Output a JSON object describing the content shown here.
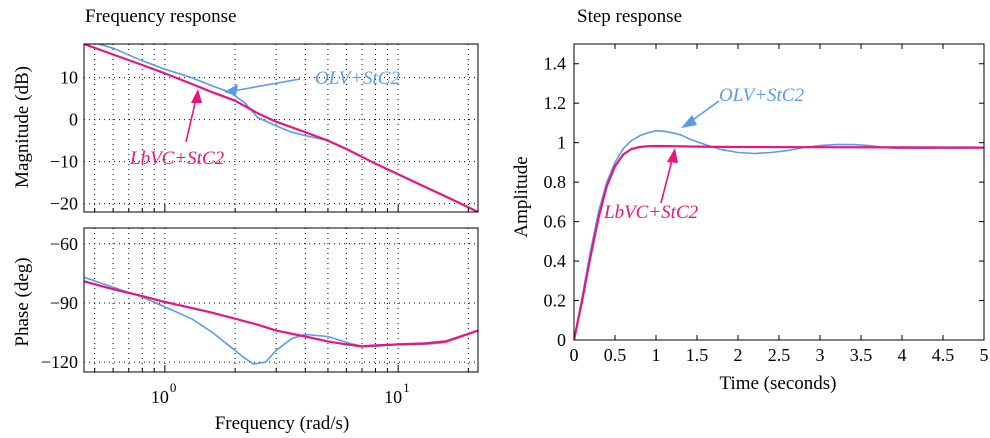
{
  "colors": {
    "olv": "#5B9BE6",
    "lbvc": "#E6157F"
  },
  "chart_data": [
    {
      "type": "line",
      "panel": "bode-magnitude",
      "title": "Frequency response",
      "xlabel": "",
      "ylabel": "Magnitude (dB)",
      "xscale": "log",
      "xlim": [
        0.45,
        22
      ],
      "ylim": [
        -22,
        18
      ],
      "yticks": [
        "10",
        "0",
        "−10",
        "−20"
      ],
      "ytick_values": [
        10,
        0,
        -10,
        -20
      ],
      "series": [
        {
          "name": "OLV+StC2",
          "color": "#5B9BE6",
          "x": [
            0.45,
            0.6,
            0.8,
            1.0,
            1.3,
            1.6,
            1.9,
            2.2,
            2.5,
            3.0,
            3.5,
            4.0,
            5.0,
            6.0,
            8.0,
            10,
            13,
            17,
            22
          ],
          "y": [
            19,
            17,
            14,
            12,
            10,
            8,
            6.5,
            4,
            0.5,
            -1.5,
            -3,
            -3.8,
            -5,
            -7,
            -10.5,
            -13,
            -16,
            -19,
            -22
          ]
        },
        {
          "name": "LbVC+StC2",
          "color": "#E6157F",
          "x": [
            0.45,
            0.6,
            0.8,
            1.0,
            1.3,
            1.6,
            2.0,
            2.5,
            3.0,
            4.0,
            5.0,
            6.0,
            8.0,
            10,
            13,
            17,
            22
          ],
          "y": [
            18,
            15.5,
            13,
            11,
            8.5,
            6.5,
            4.5,
            1.5,
            -0.5,
            -3,
            -5,
            -7,
            -10.5,
            -13,
            -16,
            -19,
            -22
          ]
        }
      ],
      "annotations": [
        {
          "text": "OLV+StC2",
          "color": "#5B9BE6"
        },
        {
          "text": "LbVC+StC2",
          "color": "#E6157F"
        }
      ]
    },
    {
      "type": "line",
      "panel": "bode-phase",
      "xlabel": "Frequency  (rad/s)",
      "ylabel": "Phase (deg)",
      "xscale": "log",
      "xlim": [
        0.45,
        22
      ],
      "ylim": [
        -125,
        -52
      ],
      "yticks": [
        "−60",
        "−90",
        "−120"
      ],
      "ytick_values": [
        -60,
        -90,
        -120
      ],
      "xticks": [
        {
          "base": "10",
          "exp": "0",
          "value": 1
        },
        {
          "base": "10",
          "exp": "1",
          "value": 10
        }
      ],
      "series": [
        {
          "name": "OLV+StC2",
          "color": "#5B9BE6",
          "x": [
            0.45,
            0.6,
            0.8,
            1.0,
            1.3,
            1.6,
            1.9,
            2.2,
            2.4,
            2.7,
            3.0,
            3.5,
            4.0,
            5.0,
            6.0,
            7.0,
            8.0,
            10,
            13,
            16,
            22
          ],
          "y": [
            -77,
            -82,
            -87,
            -92,
            -98,
            -105,
            -112,
            -118,
            -121,
            -120,
            -114,
            -108,
            -106,
            -107,
            -110,
            -112,
            -112,
            -111,
            -111,
            -110,
            -104
          ]
        },
        {
          "name": "LbVC+StC2",
          "color": "#E6157F",
          "x": [
            0.45,
            0.6,
            0.8,
            1.0,
            1.3,
            1.6,
            2.0,
            2.5,
            3.0,
            4.0,
            5.0,
            6.0,
            7.0,
            8.0,
            10,
            13,
            16,
            22
          ],
          "y": [
            -79,
            -83,
            -86.5,
            -89.5,
            -92.5,
            -95,
            -98,
            -101,
            -104,
            -107,
            -109.5,
            -111,
            -112,
            -111.5,
            -111,
            -110.5,
            -109.5,
            -104
          ]
        }
      ]
    },
    {
      "type": "line",
      "panel": "step",
      "title": "Step response",
      "xlabel": "Time (seconds)",
      "ylabel": "Amplitude",
      "xlim": [
        0,
        5
      ],
      "ylim": [
        0,
        1.5
      ],
      "xticks": [
        "0",
        "0.5",
        "1",
        "1.5",
        "2",
        "2.5",
        "3",
        "3.5",
        "4",
        "4.5",
        "5"
      ],
      "yticks": [
        "0",
        "0.2",
        "0.4",
        "0.6",
        "0.8",
        "1",
        "1.2",
        "1.4"
      ],
      "series": [
        {
          "name": "OLV+StC2",
          "color": "#5B9BE6",
          "x": [
            0,
            0.1,
            0.2,
            0.3,
            0.4,
            0.5,
            0.6,
            0.7,
            0.8,
            0.9,
            1.0,
            1.1,
            1.2,
            1.3,
            1.4,
            1.5,
            1.6,
            1.8,
            2.0,
            2.2,
            2.4,
            2.6,
            2.8,
            3.0,
            3.2,
            3.4,
            3.6,
            3.8,
            4.0,
            4.2,
            4.5,
            5.0
          ],
          "y": [
            0,
            0.22,
            0.45,
            0.65,
            0.8,
            0.9,
            0.97,
            1.01,
            1.035,
            1.05,
            1.06,
            1.058,
            1.05,
            1.04,
            1.02,
            1.005,
            0.99,
            0.965,
            0.95,
            0.945,
            0.95,
            0.96,
            0.975,
            0.985,
            0.99,
            0.99,
            0.985,
            0.975,
            0.97,
            0.97,
            0.972,
            0.973
          ]
        },
        {
          "name": "LbVC+StC2",
          "color": "#E6157F",
          "x": [
            0,
            0.1,
            0.2,
            0.3,
            0.4,
            0.5,
            0.6,
            0.7,
            0.8,
            0.9,
            1.0,
            1.2,
            1.5,
            2.0,
            3.0,
            4.0,
            5.0
          ],
          "y": [
            0,
            0.2,
            0.42,
            0.62,
            0.78,
            0.88,
            0.94,
            0.968,
            0.978,
            0.982,
            0.983,
            0.982,
            0.98,
            0.978,
            0.977,
            0.976,
            0.975
          ]
        }
      ],
      "annotations": [
        {
          "text": "OLV+StC2",
          "color": "#5B9BE6"
        },
        {
          "text": "LbVC+StC2",
          "color": "#E6157F"
        }
      ]
    }
  ]
}
